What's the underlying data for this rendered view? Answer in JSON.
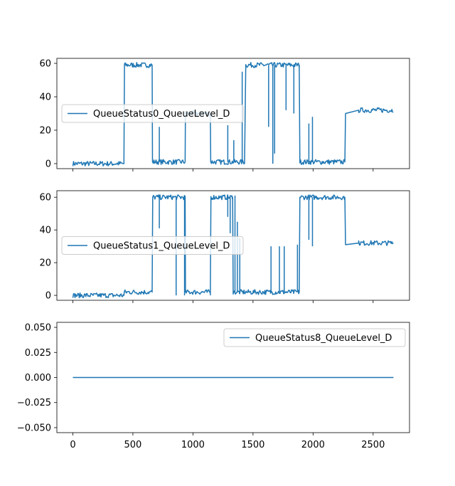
{
  "chart_data": [
    {
      "type": "line",
      "series": [
        {
          "name": "QueueStatus0_QueueLevel_D",
          "color": "#1f77b4",
          "segments": [
            {
              "x": [
                0,
                425
              ],
              "y": [
                0,
                0
              ]
            },
            {
              "x": [
                425,
                430,
                660
              ],
              "y": [
                0,
                59,
                59
              ]
            },
            {
              "x": [
                660,
                663,
                935
              ],
              "y": [
                59,
                1,
                1
              ]
            },
            {
              "x": [
                935,
                937,
                1145
              ],
              "y": [
                1,
                30,
                30
              ]
            },
            {
              "x": [
                1145,
                1148,
                1430
              ],
              "y": [
                30,
                1,
                1
              ]
            },
            {
              "x": [
                1430,
                1440,
                1885
              ],
              "y": [
                1,
                59,
                59
              ]
            },
            {
              "x": [
                1885,
                1890,
                2265
              ],
              "y": [
                59,
                1,
                1
              ]
            },
            {
              "x": [
                2265,
                2270,
                2380,
                2670
              ],
              "y": [
                1,
                30,
                32,
                32
              ]
            }
          ],
          "spikes": [
            {
              "x": 720,
              "from": 1,
              "to": 22
            },
            {
              "x": 1290,
              "from": 1,
              "to": 23
            },
            {
              "x": 1340,
              "from": 1,
              "to": 14
            },
            {
              "x": 1410,
              "from": 1,
              "to": 55
            },
            {
              "x": 1630,
              "from": 59,
              "to": 22
            },
            {
              "x": 1665,
              "from": 59,
              "to": 0
            },
            {
              "x": 1680,
              "from": 59,
              "to": 6
            },
            {
              "x": 1775,
              "from": 59,
              "to": 32
            },
            {
              "x": 1840,
              "from": 59,
              "to": 30
            },
            {
              "x": 1965,
              "from": 1,
              "to": 24
            },
            {
              "x": 1995,
              "from": 1,
              "to": 28
            }
          ],
          "noise": 1.5
        }
      ],
      "xlim": [
        -133,
        2803
      ],
      "ylim": [
        -3,
        63
      ],
      "yticks": [
        0,
        20,
        40,
        60
      ],
      "legend": "center-left"
    },
    {
      "type": "line",
      "series": [
        {
          "name": "QueueStatus1_QueueLevel_D",
          "color": "#1f77b4",
          "segments": [
            {
              "x": [
                0,
                425
              ],
              "y": [
                0,
                0
              ]
            },
            {
              "x": [
                425,
                428,
                660
              ],
              "y": [
                0,
                2,
                2
              ]
            },
            {
              "x": [
                660,
                665,
                935
              ],
              "y": [
                2,
                60,
                60
              ]
            },
            {
              "x": [
                935,
                938,
                1145
              ],
              "y": [
                60,
                2,
                2
              ]
            },
            {
              "x": [
                1145,
                1150,
                1330
              ],
              "y": [
                2,
                60,
                60
              ]
            },
            {
              "x": [
                1330,
                1335,
                1885
              ],
              "y": [
                60,
                2,
                2
              ]
            },
            {
              "x": [
                1885,
                1890,
                2265
              ],
              "y": [
                2,
                60,
                60
              ]
            },
            {
              "x": [
                2265,
                2270,
                2380,
                2670
              ],
              "y": [
                60,
                31,
                32,
                32
              ]
            }
          ],
          "spikes": [
            {
              "x": 720,
              "from": 60,
              "to": 41
            },
            {
              "x": 860,
              "from": 60,
              "to": 0
            },
            {
              "x": 930,
              "from": 60,
              "to": 0
            },
            {
              "x": 1145,
              "from": 2,
              "to": 0
            },
            {
              "x": 1290,
              "from": 60,
              "to": 48
            },
            {
              "x": 1310,
              "from": 60,
              "to": 38
            },
            {
              "x": 1350,
              "from": 2,
              "to": 61
            },
            {
              "x": 1370,
              "from": 2,
              "to": 45
            },
            {
              "x": 1390,
              "from": 2,
              "to": 35
            },
            {
              "x": 1650,
              "from": 2,
              "to": 30
            },
            {
              "x": 1720,
              "from": 2,
              "to": 30
            },
            {
              "x": 1760,
              "from": 2,
              "to": 30
            },
            {
              "x": 1870,
              "from": 2,
              "to": 31
            },
            {
              "x": 1965,
              "from": 60,
              "to": 34
            },
            {
              "x": 1995,
              "from": 60,
              "to": 30
            }
          ],
          "noise": 1.5
        }
      ],
      "xlim": [
        -133,
        2803
      ],
      "ylim": [
        -3,
        64
      ],
      "yticks": [
        0,
        20,
        40,
        60
      ],
      "legend": "center-left"
    },
    {
      "type": "line",
      "series": [
        {
          "name": "QueueStatus8_QueueLevel_D",
          "color": "#1f77b4",
          "segments": [
            {
              "x": [
                0,
                2670
              ],
              "y": [
                0,
                0
              ]
            }
          ],
          "spikes": [],
          "noise": 0
        }
      ],
      "xlim": [
        -133,
        2803
      ],
      "ylim": [
        -0.055,
        0.055
      ],
      "yticks": [
        0.05,
        0.025,
        0.0,
        -0.025,
        -0.05
      ],
      "ytick_labels": [
        "0.050",
        "0.025",
        "0.000",
        "−0.025",
        "−0.050"
      ],
      "legend": "upper-right"
    }
  ],
  "shared_x": {
    "ticks": [
      0,
      500,
      1000,
      1500,
      2000,
      2500
    ],
    "labels": [
      "0",
      "500",
      "1000",
      "1500",
      "2000",
      "2500"
    ]
  }
}
